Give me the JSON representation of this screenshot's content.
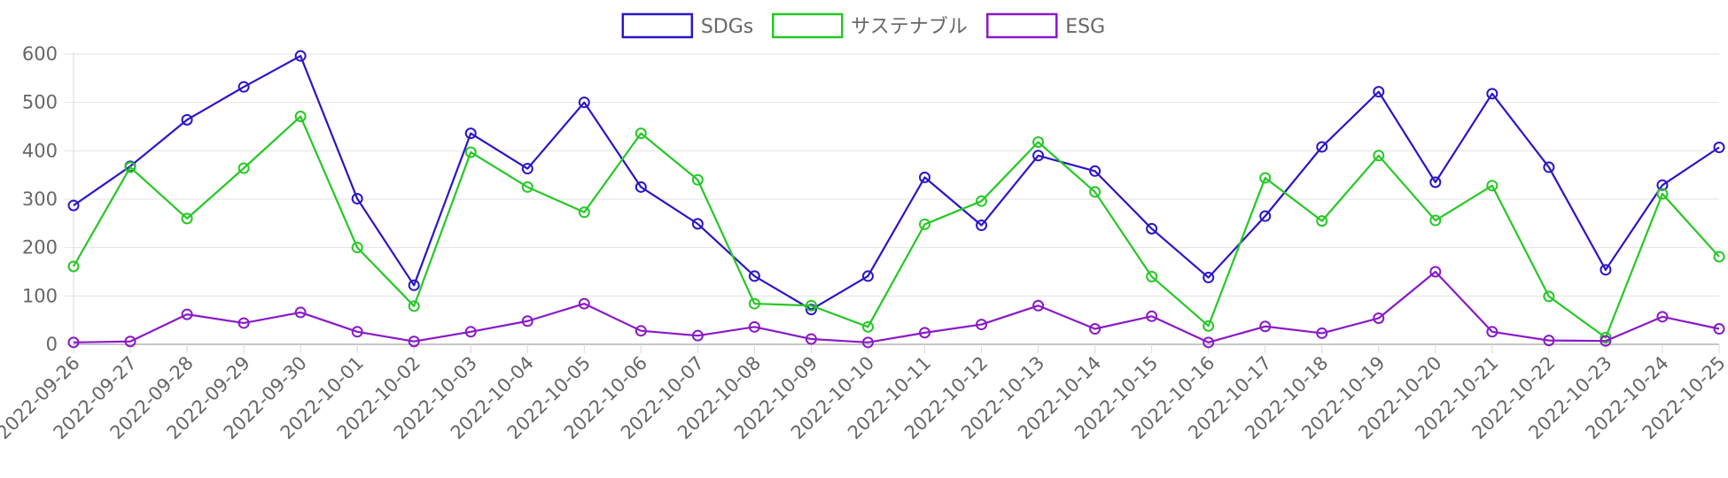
{
  "chart_data": {
    "type": "line",
    "categories": [
      "2022-09-26",
      "2022-09-27",
      "2022-09-28",
      "2022-09-29",
      "2022-09-30",
      "2022-10-01",
      "2022-10-02",
      "2022-10-03",
      "2022-10-04",
      "2022-10-05",
      "2022-10-06",
      "2022-10-07",
      "2022-10-08",
      "2022-10-09",
      "2022-10-10",
      "2022-10-11",
      "2022-10-12",
      "2022-10-13",
      "2022-10-14",
      "2022-10-15",
      "2022-10-16",
      "2022-10-17",
      "2022-10-18",
      "2022-10-19",
      "2022-10-20",
      "2022-10-21",
      "2022-10-22",
      "2022-10-23",
      "2022-10-24",
      "2022-10-25"
    ],
    "series": [
      {
        "name": "SDGs",
        "color": "#2a16c7",
        "values": [
          287,
          368,
          464,
          532,
          596,
          301,
          122,
          436,
          363,
          500,
          325,
          249,
          141,
          72,
          141,
          345,
          246,
          390,
          358,
          239,
          138,
          265,
          408,
          522,
          335,
          518,
          366,
          154,
          329,
          407
        ]
      },
      {
        "name": "サステナブル",
        "color": "#26c826",
        "values": [
          161,
          366,
          260,
          364,
          471,
          200,
          79,
          397,
          325,
          273,
          436,
          340,
          84,
          80,
          36,
          248,
          296,
          418,
          315,
          140,
          38,
          344,
          255,
          390,
          256,
          328,
          99,
          14,
          311,
          181
        ]
      },
      {
        "name": "ESG",
        "color": "#8a19c8",
        "values": [
          4,
          6,
          62,
          44,
          66,
          26,
          6,
          26,
          48,
          84,
          28,
          18,
          36,
          11,
          4,
          24,
          41,
          80,
          32,
          58,
          4,
          37,
          23,
          54,
          150,
          26,
          8,
          7,
          57,
          32
        ]
      }
    ],
    "ylim": [
      0,
      600
    ],
    "yticks": [
      0,
      100,
      200,
      300,
      400,
      500,
      600
    ],
    "grid": true,
    "legend_position": "top-center",
    "title": "",
    "xlabel": "",
    "ylabel": ""
  }
}
